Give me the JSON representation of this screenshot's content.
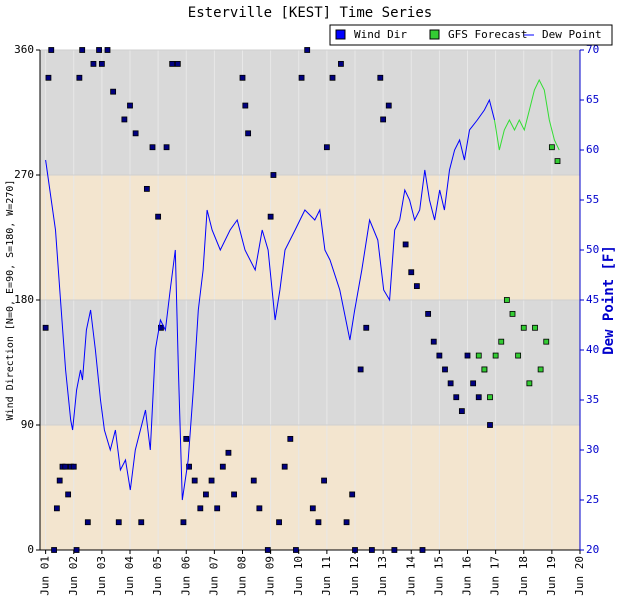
{
  "chart_data": {
    "type": "combo",
    "title": "Esterville [KEST] Time Series",
    "ylabel": "Wind Direction [N=0, E=90, S=180, W=270]",
    "y2label": "Dew Point [F]",
    "xlim": [
      0.8,
      20
    ],
    "xticks": [
      {
        "value": 1,
        "label": "Jun 01"
      },
      {
        "value": 2,
        "label": "Jun 02"
      },
      {
        "value": 3,
        "label": "Jun 03"
      },
      {
        "value": 4,
        "label": "Jun 04"
      },
      {
        "value": 5,
        "label": "Jun 05"
      },
      {
        "value": 6,
        "label": "Jun 06"
      },
      {
        "value": 7,
        "label": "Jun 07"
      },
      {
        "value": 8,
        "label": "Jun 08"
      },
      {
        "value": 9,
        "label": "Jun 09"
      },
      {
        "value": 10,
        "label": "Jun 10"
      },
      {
        "value": 11,
        "label": "Jun 11"
      },
      {
        "value": 12,
        "label": "Jun 12"
      },
      {
        "value": 13,
        "label": "Jun 13"
      },
      {
        "value": 14,
        "label": "Jun 14"
      },
      {
        "value": 15,
        "label": "Jun 15"
      },
      {
        "value": 16,
        "label": "Jun 16"
      },
      {
        "value": 17,
        "label": "Jun 17"
      },
      {
        "value": 18,
        "label": "Jun 18"
      },
      {
        "value": 19,
        "label": "Jun 19"
      },
      {
        "value": 20,
        "label": "Jun 20"
      }
    ],
    "ylim": [
      0,
      360
    ],
    "yticks": [
      0,
      90,
      180,
      270,
      360
    ],
    "y2lim": [
      20,
      70
    ],
    "y2ticks": [
      20,
      25,
      30,
      35,
      40,
      45,
      50,
      55,
      60,
      65,
      70
    ],
    "band_colors": [
      "#f3e5cf",
      "#d9d9d9"
    ],
    "grid": true,
    "legend": "top-right",
    "series": [
      {
        "name": "Wind Dir",
        "type": "scatter",
        "color": "#000080",
        "x": [
          1.0,
          1.1,
          1.2,
          1.3,
          1.4,
          1.5,
          1.6,
          1.7,
          1.8,
          1.9,
          2.0,
          2.1,
          2.2,
          2.3,
          2.5,
          2.7,
          2.9,
          3.0,
          3.2,
          3.4,
          3.6,
          3.8,
          4.0,
          4.2,
          4.4,
          4.6,
          4.8,
          5.0,
          5.1,
          5.3,
          5.5,
          5.7,
          5.9,
          6.0,
          6.1,
          6.3,
          6.5,
          6.7,
          6.9,
          7.1,
          7.3,
          7.5,
          7.7,
          8.0,
          8.1,
          8.2,
          8.4,
          8.6,
          8.9,
          9.0,
          9.1,
          9.3,
          9.5,
          9.7,
          9.9,
          10.1,
          10.3,
          10.5,
          10.7,
          10.9,
          11.0,
          11.2,
          11.5,
          11.7,
          11.9,
          12.0,
          12.2,
          12.4,
          12.6,
          12.9,
          13.0,
          13.2,
          13.4,
          13.8,
          14.0,
          14.2,
          14.4,
          14.6,
          14.8,
          15.0,
          15.2,
          15.4,
          15.6,
          15.8,
          16.0,
          16.2,
          16.4,
          16.6,
          16.8
        ],
        "values": [
          160,
          340,
          360,
          0,
          30,
          50,
          60,
          60,
          40,
          60,
          60,
          0,
          340,
          360,
          20,
          350,
          360,
          350,
          360,
          330,
          20,
          310,
          320,
          300,
          20,
          260,
          290,
          240,
          160,
          290,
          350,
          350,
          20,
          80,
          60,
          50,
          30,
          40,
          50,
          30,
          60,
          70,
          40,
          340,
          320,
          300,
          50,
          30,
          0,
          240,
          270,
          20,
          60,
          80,
          0,
          340,
          360,
          30,
          20,
          50,
          290,
          340,
          350,
          20,
          40,
          0,
          130,
          160,
          0,
          340,
          310,
          320,
          0,
          220,
          200,
          190,
          0,
          170,
          150,
          140,
          130,
          120,
          110,
          100,
          140,
          120,
          110,
          130,
          90
        ]
      },
      {
        "name": "GFS Forecast",
        "type": "scatter",
        "color": "#33cc33",
        "x": [
          16.4,
          16.6,
          16.8,
          17.0,
          17.2,
          17.4,
          17.6,
          17.8,
          18.0,
          18.2,
          18.4,
          18.6,
          18.8,
          19.0,
          19.2
        ],
        "values": [
          140,
          130,
          110,
          140,
          150,
          180,
          170,
          140,
          160,
          120,
          160,
          130,
          150,
          290,
          280
        ]
      },
      {
        "name": "Dew Point",
        "type": "line",
        "axis": "y2",
        "color": "#0000ff",
        "x": [
          1.0,
          1.35,
          1.53,
          1.71,
          1.89,
          1.96,
          2.1,
          2.24,
          2.31,
          2.45,
          2.6,
          2.77,
          2.95,
          3.09,
          3.3,
          3.48,
          3.66,
          3.84,
          4.01,
          4.19,
          4.37,
          4.55,
          4.72,
          4.9,
          5.08,
          5.26,
          5.43,
          5.61,
          5.72,
          5.86,
          6.07,
          6.25,
          6.43,
          6.6,
          6.74,
          6.92,
          7.21,
          7.56,
          7.81,
          8.09,
          8.45,
          8.7,
          8.91,
          9.16,
          9.33,
          9.51,
          9.87,
          10.22,
          10.57,
          10.75,
          10.93,
          11.11,
          11.46,
          11.82,
          11.99,
          12.24,
          12.52,
          12.81,
          13.02,
          13.23,
          13.41,
          13.59,
          13.77,
          13.94,
          14.12,
          14.3,
          14.48,
          14.65,
          14.83,
          15.01,
          15.18,
          15.36,
          15.54,
          15.72,
          15.89,
          16.07,
          16.35,
          16.6,
          16.78,
          16.96
        ],
        "values": [
          59,
          52,
          45,
          38,
          33,
          32,
          36,
          38,
          37,
          42,
          44,
          40,
          35,
          32,
          30,
          32,
          28,
          29,
          26,
          30,
          32,
          34,
          30,
          40,
          43,
          42,
          46,
          50,
          38,
          25,
          29,
          36,
          44,
          48,
          54,
          52,
          50,
          52,
          53,
          50,
          48,
          52,
          50,
          43,
          46,
          50,
          52,
          54,
          53,
          54,
          50,
          49,
          46,
          41,
          44,
          48,
          53,
          51,
          46,
          45,
          52,
          53,
          56,
          55,
          53,
          54,
          58,
          55,
          53,
          56,
          54,
          58,
          60,
          61,
          59,
          62,
          63,
          64,
          65,
          63
        ]
      },
      {
        "type": "line",
        "axis": "y2",
        "color": "#33dd33",
        "x": [
          16.96,
          17.13,
          17.31,
          17.49,
          17.67,
          17.84,
          18.02,
          18.2,
          18.38,
          18.55,
          18.73,
          18.91,
          19.09,
          19.26
        ],
        "values": [
          63,
          60,
          62,
          63,
          62,
          63,
          62,
          64,
          66,
          67,
          66,
          63,
          61,
          60
        ]
      }
    ]
  }
}
